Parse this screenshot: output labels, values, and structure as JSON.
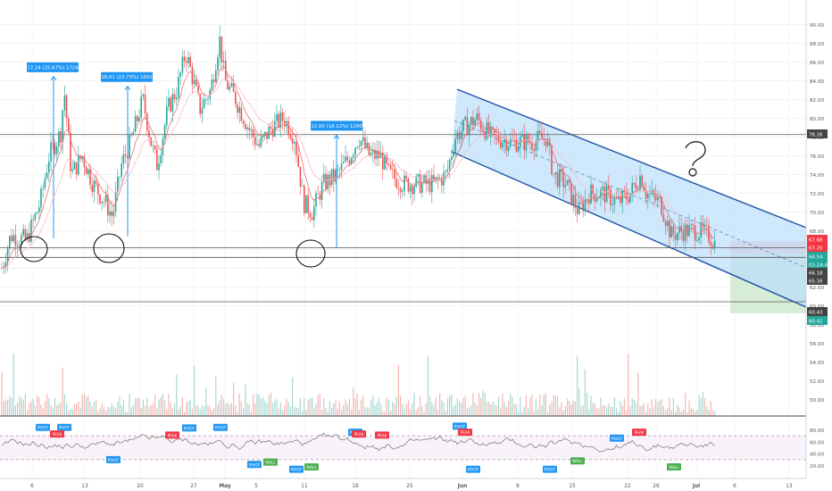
{
  "chart_data": [
    {
      "type": "candlestick",
      "title": "",
      "price_axis": {
        "ticks": [
          "90.00",
          "88.00",
          "86.00",
          "84.00",
          "82.00",
          "80.00",
          "78.00",
          "76.00",
          "74.00",
          "72.00",
          "70.00",
          "68.00",
          "66.00",
          "64.00",
          "62.00",
          "60.00",
          "58.00",
          "56.00",
          "54.00",
          "52.00",
          "50.00"
        ],
        "ylim": [
          49.0,
          91.0
        ]
      },
      "time_axis": {
        "ticks": [
          "6",
          "13",
          "20",
          "27",
          "May",
          "5",
          "11",
          "18",
          "25",
          "Jun",
          "8",
          "15",
          "22",
          "26",
          "Jul",
          "6",
          "13"
        ]
      },
      "price_labels": [
        {
          "value": "78.26",
          "color": "#444444",
          "role": "horizontal-level"
        },
        {
          "value": "67.68",
          "color": "#f23645",
          "role": "stop-loss"
        },
        {
          "value": "67.20",
          "color": "#f23645",
          "role": "entry"
        },
        {
          "value": "66.54",
          "color": "#26a69a",
          "role": "last-price"
        },
        {
          "value": "01:24:44",
          "color": "#26a69a",
          "role": "bar-countdown"
        },
        {
          "value": "66.18",
          "color": "#444444",
          "role": "horizontal-level"
        },
        {
          "value": "65.16",
          "color": "#444444",
          "role": "horizontal-level"
        },
        {
          "value": "60.43",
          "color": "#444444",
          "role": "horizontal-level"
        },
        {
          "value": "60.42",
          "color": "#26a69a",
          "role": "target"
        }
      ],
      "horizontal_levels": [
        78.26,
        66.18,
        65.16,
        60.43
      ],
      "measurements": [
        {
          "label": "17.24 (25.67%) 1724",
          "from": 67.2,
          "to": 84.44
        },
        {
          "label": "16.01 (23.73%) 1601",
          "from": 67.4,
          "to": 83.41
        },
        {
          "label": "12.00 (18.12%) 1200",
          "from": 66.2,
          "to": 78.2
        }
      ],
      "annotation": {
        "text": "?"
      },
      "colors": {
        "up": "#26a69a",
        "down": "#ef5350",
        "channel_fill": "#bbdefb",
        "channel_line": "#1e53a5",
        "grid": "#f2f2f2",
        "ema": "#f48fb1"
      }
    },
    {
      "type": "bar",
      "series": "volume"
    },
    {
      "type": "line",
      "series": "oscillator",
      "y_axis_ticks": [
        "80.00",
        "60.00",
        "40.00",
        "20.00"
      ],
      "ylim": [
        0,
        100
      ],
      "reference_levels": [
        70,
        30
      ],
      "markers": [
        {
          "label": "PIVOT",
          "color": "#2196f3",
          "y": 84
        },
        {
          "label": "PIVOT",
          "color": "#2196f3",
          "y": 84
        },
        {
          "label": "PEAK",
          "color": "#f23645",
          "y": 73
        },
        {
          "label": "PIVOT",
          "color": "#2196f3",
          "y": 30
        },
        {
          "label": "PEAK",
          "color": "#f23645",
          "y": 71
        },
        {
          "label": "PIVOT",
          "color": "#2196f3",
          "y": 83
        },
        {
          "label": "PIVOT",
          "color": "#2196f3",
          "y": 84
        },
        {
          "label": "PIVOT",
          "color": "#2196f3",
          "y": 22
        },
        {
          "label": "WALL",
          "color": "#4caf50",
          "y": 26
        },
        {
          "label": "PIVOT",
          "color": "#2196f3",
          "y": 14
        },
        {
          "label": "WALL",
          "color": "#4caf50",
          "y": 18
        },
        {
          "label": "PIVOT",
          "color": "#2196f3",
          "y": 76
        },
        {
          "label": "PEAK",
          "color": "#f23645",
          "y": 73
        },
        {
          "label": "PEAK",
          "color": "#f23645",
          "y": 71
        },
        {
          "label": "PIVOT",
          "color": "#2196f3",
          "y": 86
        },
        {
          "label": "PEAK",
          "color": "#f23645",
          "y": 76
        },
        {
          "label": "PIVOT",
          "color": "#2196f3",
          "y": 14
        },
        {
          "label": "PIVOT",
          "color": "#2196f3",
          "y": 14
        },
        {
          "label": "WALL",
          "color": "#4caf50",
          "y": 28
        },
        {
          "label": "PIVOT",
          "color": "#2196f3",
          "y": 66
        },
        {
          "label": "PEAK",
          "color": "#f23645",
          "y": 76
        },
        {
          "label": "WALL",
          "color": "#4caf50",
          "y": 18
        }
      ]
    }
  ]
}
